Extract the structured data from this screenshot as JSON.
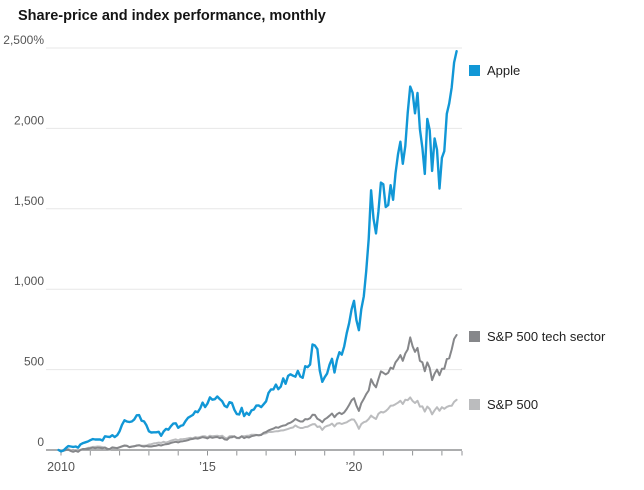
{
  "title": "Share-price and index performance, monthly",
  "chart_data": {
    "type": "line",
    "title": "Share-price and index performance, monthly",
    "x_start": "2009-12",
    "x_frequency": "monthly",
    "xlim_years": [
      2009.9,
      2023.75
    ],
    "ylim": [
      0,
      2500
    ],
    "grid": "horizontal",
    "legend_position": "right-of-line-ends",
    "y_axis": {
      "ticks": [
        {
          "label": "2,500%",
          "value": 2500
        },
        {
          "label": "2,000",
          "value": 2000
        },
        {
          "label": "1,500",
          "value": 1500
        },
        {
          "label": "1,000",
          "value": 1000
        },
        {
          "label": "500",
          "value": 500
        },
        {
          "label": "0",
          "value": 0
        }
      ]
    },
    "x_axis": {
      "tick_years": [
        2010,
        2011,
        2012,
        2013,
        2014,
        2015,
        2016,
        2017,
        2018,
        2019,
        2020,
        2021,
        2022,
        2023
      ],
      "labels": [
        {
          "text": "2010",
          "year": 2010
        },
        {
          "text": "’15",
          "year": 2015
        },
        {
          "text": "’20",
          "year": 2020
        }
      ]
    },
    "series": [
      {
        "name": "S&P 500",
        "color": "#bbbcbe",
        "line_width": 2,
        "values": [
          0,
          -4,
          -1,
          5,
          6,
          -2,
          -8,
          -1,
          -6,
          2,
          6,
          6,
          13,
          15,
          19,
          19,
          22,
          21,
          18,
          16,
          9,
          2,
          12,
          12,
          13,
          18,
          22,
          26,
          25,
          18,
          22,
          24,
          26,
          29,
          27,
          27,
          28,
          34,
          36,
          41,
          43,
          46,
          44,
          51,
          46,
          51,
          58,
          62,
          66,
          60,
          67,
          68,
          69,
          72,
          76,
          73,
          80,
          77,
          81,
          85,
          85,
          79,
          89,
          85,
          87,
          89,
          85,
          89,
          77,
          72,
          86,
          87,
          83,
          74,
          73,
          85,
          85,
          88,
          88,
          95,
          95,
          94,
          91,
          97,
          101,
          104,
          112,
          112,
          114,
          116,
          117,
          121,
          122,
          126,
          131,
          137,
          140,
          153,
          143,
          137,
          137,
          143,
          144,
          153,
          160,
          161,
          143,
          147,
          125,
          143,
          150,
          154,
          164,
          147,
          164,
          167,
          162,
          167,
          172,
          182,
          190,
          189,
          165,
          132,
          161,
          173,
          178,
          193,
          214,
          202,
          193,
          225,
          237,
          233,
          242,
          256,
          275,
          277,
          285,
          294,
          306,
          286,
          313,
          310,
          327,
          305,
          292,
          306,
          270,
          271,
          239,
          270,
          255,
          222,
          247,
          266,
          244,
          266,
          256,
          268,
          274,
          275,
          299,
          312
        ]
      },
      {
        "name": "S&P 500 tech sector",
        "color": "#86878a",
        "line_width": 2,
        "values": [
          0,
          -9,
          -5,
          0,
          2,
          -6,
          -11,
          -5,
          -11,
          0,
          6,
          7,
          9,
          11,
          14,
          11,
          14,
          13,
          11,
          14,
          7,
          6,
          16,
          14,
          11,
          17,
          23,
          28,
          26,
          18,
          21,
          23,
          28,
          30,
          24,
          22,
          25,
          22,
          22,
          25,
          27,
          31,
          28,
          33,
          36,
          38,
          44,
          48,
          51,
          47,
          53,
          55,
          57,
          61,
          67,
          69,
          73,
          71,
          75,
          80,
          77,
          72,
          81,
          76,
          79,
          81,
          74,
          78,
          66,
          64,
          78,
          79,
          85,
          76,
          75,
          85,
          74,
          81,
          78,
          86,
          89,
          93,
          92,
          93,
          107,
          112,
          122,
          128,
          133,
          142,
          138,
          147,
          152,
          154,
          165,
          170,
          180,
          193,
          185,
          177,
          177,
          192,
          190,
          198,
          219,
          218,
          194,
          186,
          172,
          191,
          200,
          213,
          227,
          204,
          222,
          232,
          223,
          234,
          255,
          280,
          309,
          322,
          276,
          243,
          291,
          318,
          347,
          370,
          440,
          410,
          390,
          440,
          489,
          480,
          470,
          480,
          512,
          505,
          545,
          565,
          590,
          555,
          600,
          625,
          700,
          645,
          610,
          635,
          555,
          545,
          490,
          545,
          510,
          435,
          475,
          500,
          465,
          505,
          505,
          565,
          570,
          625,
          690,
          715
        ]
      },
      {
        "name": "Apple",
        "color": "#1197d6",
        "line_width": 2.4,
        "values": [
          0,
          -9,
          -3,
          12,
          24,
          22,
          19,
          22,
          15,
          35,
          43,
          48,
          53,
          61,
          68,
          65,
          66,
          65,
          59,
          85,
          83,
          81,
          92,
          81,
          92,
          117,
          157,
          185,
          177,
          174,
          177,
          190,
          216,
          217,
          182,
          178,
          153,
          116,
          109,
          110,
          110,
          113,
          88,
          115,
          131,
          126,
          148,
          164,
          166,
          138,
          150,
          155,
          180,
          200,
          209,
          218,
          240,
          235,
          259,
          295,
          267,
          289,
          327,
          313,
          316,
          333,
          317,
          303,
          275,
          266,
          297,
          293,
          250,
          223,
          221,
          262,
          211,
          232,
          218,
          246,
          252,
          276,
          277,
          267,
          285,
          303,
          355,
          377,
          377,
          407,
          378,
          394,
          445,
          412,
          461,
          471,
          462,
          456,
          492,
          457,
          449,
          521,
          515,
          532,
          656,
          650,
          627,
          493,
          424,
          453,
          475,
          531,
          567,
          482,
          558,
          608,
          593,
          644,
          726,
          788,
          875,
          928,
          808,
          745,
          876,
          956,
          1112,
          1312,
          1615,
          1439,
          1347,
          1482,
          1663,
          1653,
          1511,
          1523,
          1647,
          1556,
          1720,
          1838,
          1917,
          1780,
          1890,
          2096,
          2260,
          2222,
          2094,
          2220,
          1995,
          1878,
          1717,
          2059,
          1989,
          1736,
          1938,
          1867,
          1626,
          1817,
          1859,
          2091,
          2155,
          2255,
          2410,
          2480
        ]
      }
    ],
    "legend_order": [
      "Apple",
      "S&P 500 tech sector",
      "S&P 500"
    ]
  }
}
